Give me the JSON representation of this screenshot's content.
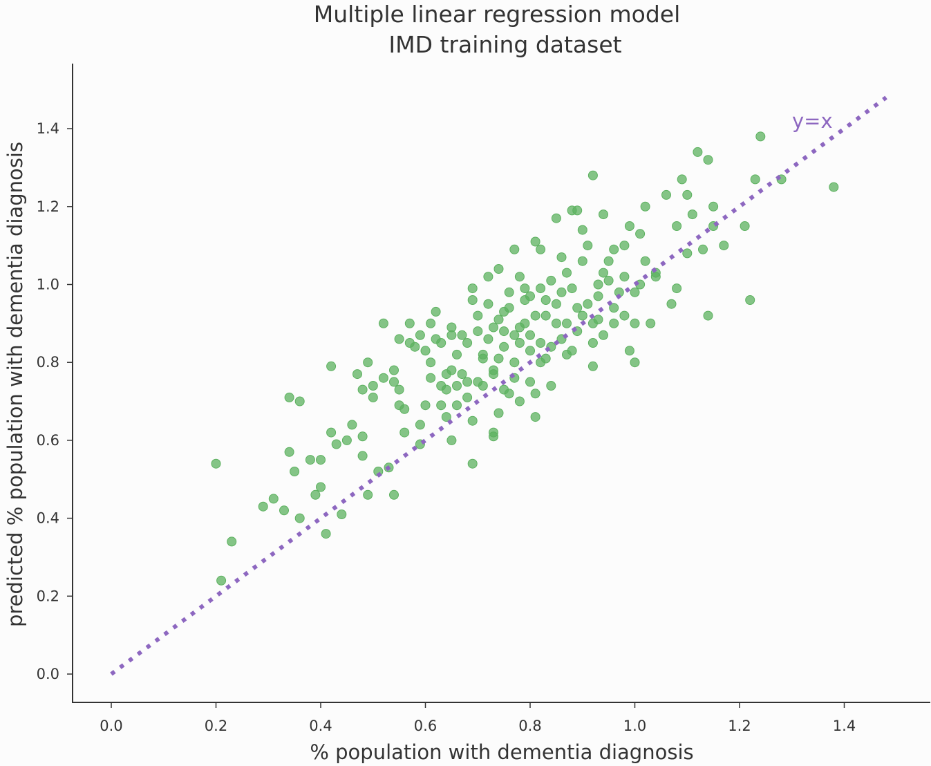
{
  "chart_data": {
    "type": "scatter",
    "title": "Multiple linear regression model",
    "subtitle": "IMD training dataset",
    "xlabel": "% population with dementia diagnosis",
    "ylabel": "predicted % population with dementia diagnosis",
    "xlim": [
      -0.075,
      1.575
    ],
    "ylim": [
      -0.075,
      1.575
    ],
    "xticks": [
      "0.0",
      "0.2",
      "0.4",
      "0.6",
      "0.8",
      "1.0",
      "1.2",
      "1.4"
    ],
    "yticks": [
      "0.0",
      "0.2",
      "0.4",
      "0.6",
      "0.8",
      "1.0",
      "1.2",
      "1.4"
    ],
    "grid": false,
    "point_color": "#5cb15f",
    "line_color": "#8d67c0",
    "reference_line": {
      "label": "y=x",
      "from": [
        0.0,
        0.0
      ],
      "to": [
        1.48,
        1.48
      ],
      "style": "dotted"
    },
    "points": [
      [
        0.2,
        0.54
      ],
      [
        0.23,
        0.34
      ],
      [
        0.21,
        0.24
      ],
      [
        0.29,
        0.43
      ],
      [
        0.31,
        0.45
      ],
      [
        0.33,
        0.42
      ],
      [
        0.34,
        0.71
      ],
      [
        0.36,
        0.7
      ],
      [
        0.35,
        0.52
      ],
      [
        0.36,
        0.4
      ],
      [
        0.34,
        0.57
      ],
      [
        0.38,
        0.55
      ],
      [
        0.39,
        0.46
      ],
      [
        0.4,
        0.48
      ],
      [
        0.41,
        0.36
      ],
      [
        0.4,
        0.55
      ],
      [
        0.42,
        0.62
      ],
      [
        0.42,
        0.79
      ],
      [
        0.43,
        0.59
      ],
      [
        0.44,
        0.41
      ],
      [
        0.45,
        0.6
      ],
      [
        0.46,
        0.64
      ],
      [
        0.47,
        0.77
      ],
      [
        0.48,
        0.61
      ],
      [
        0.48,
        0.56
      ],
      [
        0.48,
        0.73
      ],
      [
        0.49,
        0.46
      ],
      [
        0.49,
        0.8
      ],
      [
        0.5,
        0.71
      ],
      [
        0.5,
        0.74
      ],
      [
        0.51,
        0.52
      ],
      [
        0.52,
        0.76
      ],
      [
        0.52,
        0.9
      ],
      [
        0.53,
        0.53
      ],
      [
        0.54,
        0.46
      ],
      [
        0.54,
        0.78
      ],
      [
        0.54,
        0.75
      ],
      [
        0.55,
        0.73
      ],
      [
        0.55,
        0.69
      ],
      [
        0.55,
        0.86
      ],
      [
        0.56,
        0.62
      ],
      [
        0.56,
        0.68
      ],
      [
        0.57,
        0.85
      ],
      [
        0.57,
        0.9
      ],
      [
        0.58,
        0.84
      ],
      [
        0.59,
        0.59
      ],
      [
        0.59,
        0.64
      ],
      [
        0.59,
        0.87
      ],
      [
        0.6,
        0.83
      ],
      [
        0.6,
        0.69
      ],
      [
        0.61,
        0.76
      ],
      [
        0.61,
        0.8
      ],
      [
        0.61,
        0.9
      ],
      [
        0.62,
        0.86
      ],
      [
        0.62,
        0.93
      ],
      [
        0.63,
        0.74
      ],
      [
        0.63,
        0.85
      ],
      [
        0.63,
        0.69
      ],
      [
        0.64,
        0.77
      ],
      [
        0.64,
        0.73
      ],
      [
        0.64,
        0.66
      ],
      [
        0.65,
        0.78
      ],
      [
        0.65,
        0.6
      ],
      [
        0.65,
        0.87
      ],
      [
        0.65,
        0.89
      ],
      [
        0.66,
        0.82
      ],
      [
        0.66,
        0.74
      ],
      [
        0.66,
        0.69
      ],
      [
        0.67,
        0.77
      ],
      [
        0.67,
        0.87
      ],
      [
        0.68,
        0.75
      ],
      [
        0.68,
        0.71
      ],
      [
        0.68,
        0.85
      ],
      [
        0.69,
        0.99
      ],
      [
        0.69,
        0.96
      ],
      [
        0.69,
        0.54
      ],
      [
        0.69,
        0.65
      ],
      [
        0.7,
        0.75
      ],
      [
        0.7,
        0.88
      ],
      [
        0.7,
        0.92
      ],
      [
        0.71,
        0.82
      ],
      [
        0.71,
        0.74
      ],
      [
        0.71,
        0.81
      ],
      [
        0.72,
        1.02
      ],
      [
        0.72,
        0.95
      ],
      [
        0.72,
        0.86
      ],
      [
        0.73,
        0.78
      ],
      [
        0.73,
        0.61
      ],
      [
        0.73,
        0.62
      ],
      [
        0.73,
        0.89
      ],
      [
        0.73,
        0.77
      ],
      [
        0.74,
        0.81
      ],
      [
        0.74,
        0.91
      ],
      [
        0.74,
        1.04
      ],
      [
        0.74,
        0.67
      ],
      [
        0.75,
        0.73
      ],
      [
        0.75,
        0.88
      ],
      [
        0.75,
        0.84
      ],
      [
        0.75,
        0.93
      ],
      [
        0.76,
        0.94
      ],
      [
        0.76,
        0.98
      ],
      [
        0.76,
        0.72
      ],
      [
        0.77,
        1.09
      ],
      [
        0.77,
        0.8
      ],
      [
        0.77,
        0.76
      ],
      [
        0.77,
        0.87
      ],
      [
        0.78,
        0.7
      ],
      [
        0.78,
        0.85
      ],
      [
        0.78,
        0.89
      ],
      [
        0.78,
        1.02
      ],
      [
        0.79,
        0.96
      ],
      [
        0.79,
        0.99
      ],
      [
        0.79,
        0.9
      ],
      [
        0.8,
        0.83
      ],
      [
        0.8,
        0.75
      ],
      [
        0.8,
        0.87
      ],
      [
        0.8,
        0.97
      ],
      [
        0.81,
        0.92
      ],
      [
        0.81,
        1.11
      ],
      [
        0.81,
        0.66
      ],
      [
        0.81,
        0.72
      ],
      [
        0.82,
        0.85
      ],
      [
        0.82,
        0.99
      ],
      [
        0.82,
        0.8
      ],
      [
        0.82,
        1.09
      ],
      [
        0.83,
        0.92
      ],
      [
        0.83,
        0.96
      ],
      [
        0.83,
        0.81
      ],
      [
        0.84,
        0.84
      ],
      [
        0.84,
        0.74
      ],
      [
        0.84,
        1.01
      ],
      [
        0.85,
        1.17
      ],
      [
        0.85,
        0.95
      ],
      [
        0.85,
        0.9
      ],
      [
        0.86,
        0.86
      ],
      [
        0.86,
        1.07
      ],
      [
        0.86,
        0.98
      ],
      [
        0.87,
        0.82
      ],
      [
        0.87,
        1.03
      ],
      [
        0.87,
        0.9
      ],
      [
        0.88,
        1.19
      ],
      [
        0.88,
        0.99
      ],
      [
        0.88,
        0.83
      ],
      [
        0.89,
        1.19
      ],
      [
        0.89,
        0.94
      ],
      [
        0.89,
        0.88
      ],
      [
        0.9,
        1.06
      ],
      [
        0.9,
        1.14
      ],
      [
        0.9,
        0.92
      ],
      [
        0.91,
        1.1
      ],
      [
        0.91,
        0.95
      ],
      [
        0.92,
        0.79
      ],
      [
        0.92,
        0.9
      ],
      [
        0.92,
        1.28
      ],
      [
        0.92,
        0.85
      ],
      [
        0.93,
        1.0
      ],
      [
        0.93,
        0.97
      ],
      [
        0.93,
        0.91
      ],
      [
        0.94,
        1.18
      ],
      [
        0.94,
        1.03
      ],
      [
        0.94,
        0.87
      ],
      [
        0.95,
        1.01
      ],
      [
        0.95,
        1.06
      ],
      [
        0.96,
        0.9
      ],
      [
        0.96,
        1.09
      ],
      [
        0.96,
        0.94
      ],
      [
        0.97,
        0.98
      ],
      [
        0.98,
        1.1
      ],
      [
        0.98,
        1.02
      ],
      [
        0.98,
        0.92
      ],
      [
        0.99,
        1.15
      ],
      [
        0.99,
        0.83
      ],
      [
        1.0,
        0.8
      ],
      [
        1.0,
        0.98
      ],
      [
        1.0,
        0.9
      ],
      [
        1.01,
        1.13
      ],
      [
        1.01,
        1.0
      ],
      [
        1.02,
        1.2
      ],
      [
        1.02,
        1.06
      ],
      [
        1.03,
        0.9
      ],
      [
        1.04,
        1.02
      ],
      [
        1.04,
        1.03
      ],
      [
        1.06,
        1.23
      ],
      [
        1.07,
        0.95
      ],
      [
        1.08,
        0.99
      ],
      [
        1.08,
        1.15
      ],
      [
        1.09,
        1.27
      ],
      [
        1.1,
        1.08
      ],
      [
        1.1,
        1.23
      ],
      [
        1.11,
        1.18
      ],
      [
        1.12,
        1.34
      ],
      [
        1.13,
        1.09
      ],
      [
        1.14,
        0.92
      ],
      [
        1.14,
        1.32
      ],
      [
        1.15,
        1.2
      ],
      [
        1.15,
        1.15
      ],
      [
        1.17,
        1.1
      ],
      [
        1.21,
        1.15
      ],
      [
        1.22,
        0.96
      ],
      [
        1.23,
        1.27
      ],
      [
        1.24,
        1.38
      ],
      [
        1.28,
        1.27
      ],
      [
        1.38,
        1.25
      ]
    ]
  }
}
